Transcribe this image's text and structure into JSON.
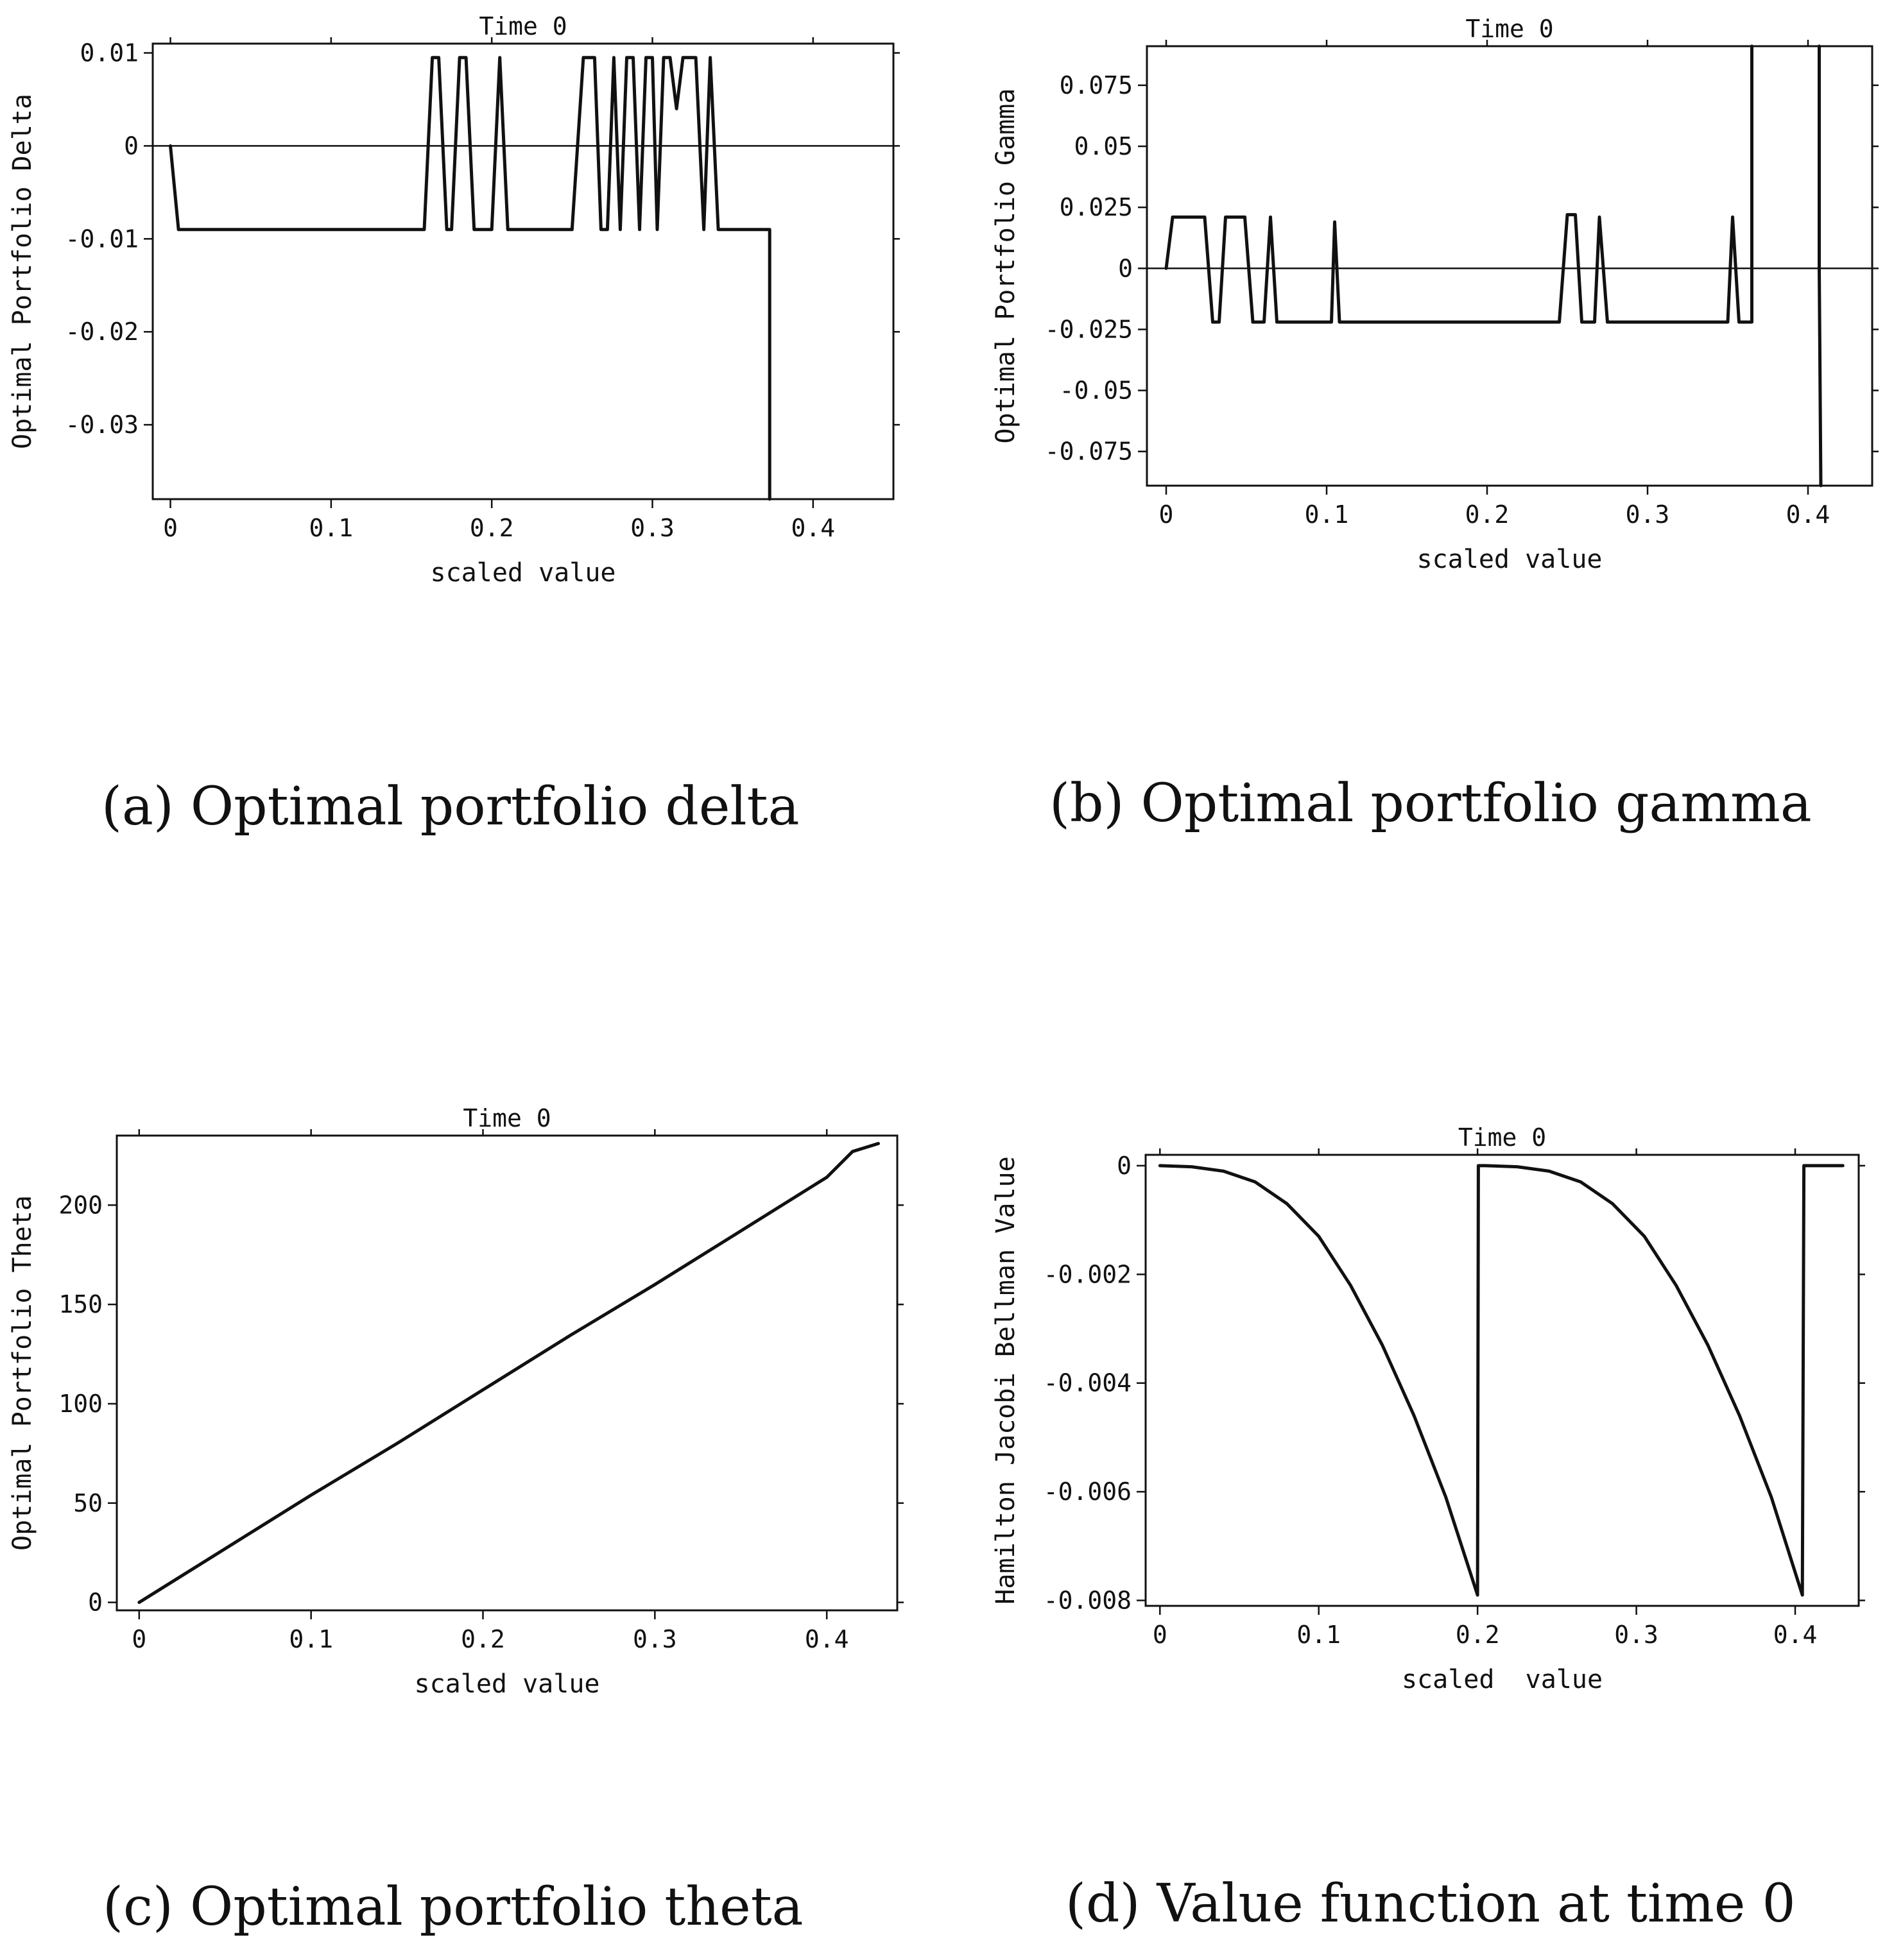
{
  "chart_data": [
    {
      "id": "a",
      "type": "line",
      "title": "Time 0",
      "xlabel": "scaled value",
      "ylabel": "Optimal Portfolio Delta",
      "caption": "(a) Optimal portfolio delta",
      "xlim": [
        -0.011,
        0.45
      ],
      "ylim": [
        -0.038,
        0.011
      ],
      "xticks": [
        0,
        0.1,
        0.2,
        0.3,
        0.4
      ],
      "xtick_labels": [
        "0",
        "0.1",
        "0.2",
        "0.3",
        "0.4"
      ],
      "yticks": [
        0.01,
        0,
        -0.01,
        -0.02,
        -0.03
      ],
      "ytick_labels": [
        "0.01",
        "0",
        "-0.01",
        "-0.02",
        "-0.03"
      ],
      "zero_line": true,
      "series": [
        {
          "x": [
            0,
            0.005,
            0.158,
            0.163,
            0.167,
            0.172,
            0.175,
            0.18,
            0.184,
            0.189,
            0.2,
            0.205,
            0.21,
            0.25,
            0.257,
            0.264,
            0.268,
            0.272,
            0.276,
            0.28,
            0.284,
            0.288,
            0.292,
            0.296,
            0.3,
            0.303,
            0.307,
            0.311,
            0.315,
            0.319,
            0.327,
            0.332,
            0.336,
            0.341,
            0.345,
            0.349,
            0.355,
            0.371,
            0.373,
            0.373
          ],
          "y": [
            0,
            -0.009,
            -0.009,
            0.0095,
            0.0095,
            -0.009,
            -0.009,
            0.0095,
            0.0095,
            -0.009,
            -0.009,
            0.0095,
            -0.009,
            -0.009,
            0.0095,
            0.0095,
            -0.009,
            -0.009,
            0.0095,
            -0.009,
            0.0095,
            0.0095,
            -0.009,
            0.0095,
            0.0095,
            -0.009,
            0.0095,
            0.0095,
            0.004,
            0.0095,
            0.0095,
            -0.009,
            0.0095,
            -0.009,
            -0.009,
            -0.009,
            -0.009,
            -0.009,
            -0.009,
            -0.038
          ]
        }
      ]
    },
    {
      "id": "b",
      "type": "line",
      "title": "Time 0",
      "xlabel": "scaled value",
      "ylabel": "Optimal Portfolio Gamma",
      "caption": "(b) Optimal portfolio gamma",
      "xlim": [
        -0.012,
        0.44
      ],
      "ylim": [
        -0.089,
        0.091
      ],
      "xticks": [
        0,
        0.1,
        0.2,
        0.3,
        0.4
      ],
      "xtick_labels": [
        "0",
        "0.1",
        "0.2",
        "0.3",
        "0.4"
      ],
      "yticks": [
        0.075,
        0.05,
        0.025,
        0,
        -0.025,
        -0.05,
        -0.075
      ],
      "ytick_labels": [
        "0.075",
        "0.05",
        "0.025",
        "0",
        "-0.025",
        "-0.05",
        "-0.075"
      ],
      "zero_line": true,
      "series": [
        {
          "x": [
            0,
            0.004,
            0.024,
            0.029,
            0.033,
            0.037,
            0.049,
            0.054,
            0.058,
            0.061,
            0.065,
            0.069,
            0.073,
            0.103,
            0.105,
            0.108,
            0.245,
            0.25,
            0.255,
            0.259,
            0.262,
            0.267,
            0.27,
            0.275,
            0.279,
            0.29,
            0.293,
            0.302,
            0.35,
            0.353,
            0.357,
            0.361,
            0.365,
            0.365
          ],
          "y": [
            0,
            0.021,
            0.021,
            -0.022,
            -0.022,
            0.021,
            0.021,
            -0.022,
            -0.022,
            -0.022,
            0.021,
            -0.022,
            -0.022,
            -0.022,
            0.019,
            -0.022,
            -0.022,
            0.022,
            0.022,
            -0.022,
            -0.022,
            -0.022,
            0.021,
            -0.022,
            -0.022,
            -0.022,
            -0.022,
            -0.022,
            -0.022,
            0.021,
            -0.022,
            -0.022,
            -0.022,
            0.091
          ]
        },
        {
          "x": [
            0.407,
            0.407,
            0.408
          ],
          "y": [
            0.091,
            0,
            -0.089
          ]
        }
      ]
    },
    {
      "id": "c",
      "type": "line",
      "title": "Time 0",
      "xlabel": "scaled value",
      "ylabel": "Optimal Portfolio Theta",
      "caption": "(c) Optimal portfolio theta",
      "xlim": [
        -0.013,
        0.441
      ],
      "ylim": [
        -4,
        235
      ],
      "xticks": [
        0,
        0.1,
        0.2,
        0.3,
        0.4
      ],
      "xtick_labels": [
        "0",
        "0.1",
        "0.2",
        "0.3",
        "0.4"
      ],
      "yticks": [
        0,
        50,
        100,
        150,
        200
      ],
      "ytick_labels": [
        "0",
        "50",
        "100",
        "150",
        "200"
      ],
      "zero_line": false,
      "series": [
        {
          "x": [
            0,
            0.05,
            0.1,
            0.15,
            0.2,
            0.25,
            0.3,
            0.35,
            0.4,
            0.415,
            0.43
          ],
          "y": [
            0,
            27,
            54,
            80,
            107,
            134,
            160,
            187,
            214,
            227,
            231
          ]
        }
      ]
    },
    {
      "id": "d",
      "type": "line",
      "title": "Time 0",
      "xlabel": "scaled  value",
      "ylabel": "Hamilton Jacobi Bellman Value",
      "caption": "(d) Value function at time 0",
      "xlim": [
        -0.009,
        0.44
      ],
      "ylim": [
        -0.0081,
        0.0002
      ],
      "xticks": [
        0,
        0.1,
        0.2,
        0.3,
        0.4
      ],
      "xtick_labels": [
        "0",
        "0.1",
        "0.2",
        "0.3",
        "0.4"
      ],
      "yticks": [
        0,
        -0.002,
        -0.004,
        -0.006,
        -0.008
      ],
      "ytick_labels": [
        "0",
        "-0.002",
        "-0.004",
        "-0.006",
        "-0.008"
      ],
      "zero_line": false,
      "series": [
        {
          "x": [
            0,
            0.02,
            0.04,
            0.06,
            0.08,
            0.1,
            0.12,
            0.14,
            0.16,
            0.18,
            0.2,
            0.2005,
            0.205,
            0.225,
            0.245,
            0.265,
            0.285,
            0.305,
            0.325,
            0.345,
            0.365,
            0.385,
            0.4045,
            0.4055,
            0.41,
            0.43
          ],
          "y": [
            0,
            -2e-05,
            -0.0001,
            -0.0003,
            -0.0007,
            -0.0013,
            -0.0022,
            -0.0033,
            -0.0046,
            -0.0061,
            -0.0079,
            0,
            0,
            -2e-05,
            -0.0001,
            -0.0003,
            -0.0007,
            -0.0013,
            -0.0022,
            -0.0033,
            -0.0046,
            -0.0061,
            -0.0079,
            0,
            0,
            0
          ]
        }
      ]
    }
  ]
}
